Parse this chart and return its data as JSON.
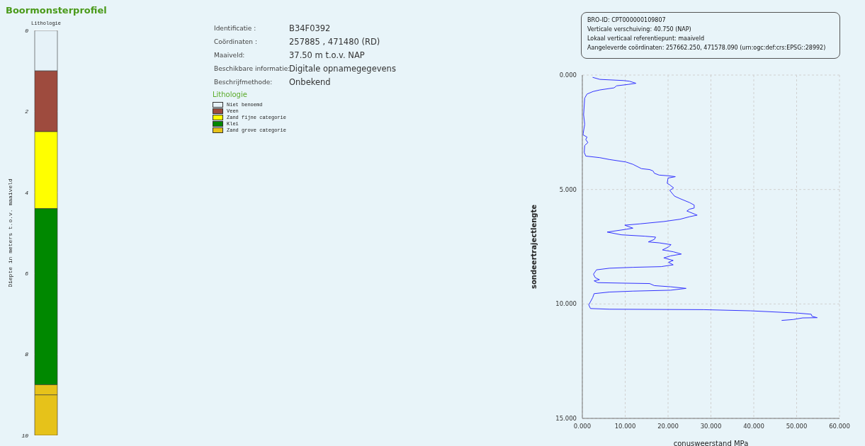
{
  "chart_data": [
    {
      "type": "bar",
      "title": "Boormonsterprofiel",
      "ylabel": "Diepte in meters t.o.v. maaiveld",
      "categories": [
        "Lithologie"
      ],
      "stacked": true,
      "series": [
        {
          "name": "Niet benoemd",
          "color": "#e6f2f8",
          "values": [
            1.0
          ]
        },
        {
          "name": "Veen",
          "color": "#9e4b3e",
          "values": [
            1.5
          ]
        },
        {
          "name": "Zand fijne categorie",
          "color": "#ffff00",
          "values": [
            1.9
          ]
        },
        {
          "name": "Klei",
          "color": "#008800",
          "values": [
            4.35
          ]
        },
        {
          "name": "Zand grove categorie",
          "color": "#e6c21a",
          "values": [
            0.25
          ]
        },
        {
          "color": "#e6c21a",
          "values": [
            1.0
          ]
        }
      ],
      "ylim": [
        10,
        0
      ],
      "yticks": [
        0,
        2,
        4,
        6,
        8,
        10
      ],
      "grid": "y",
      "legend": "right",
      "legend_title": "Lithologie"
    },
    {
      "type": "other",
      "annotations": [
        "Identificatie :",
        "B34F0392",
        "Coördinaten :",
        "257885 , 471480 (RD)",
        "Maaiveld:",
        "37.50 m t.o.v. NAP",
        "Beschikbare informatie:",
        "Digitale opnamegegevens",
        "Beschrijfmethode:",
        "Onbekend"
      ]
    },
    {
      "type": "line",
      "xlabel": "conusweerstand MPa",
      "ylabel": "sondeertrajectlengte",
      "annotations": [
        "BRO-ID: CPT000000109807",
        "Verticale verschuiving: 40.750 (NAP)",
        "Lokaal verticaal referentiepunt: maaiveld",
        "Aangeleverde coördinaten: 257662.250, 471578.090 (urn:ogc:def:crs:EPSG::28992)"
      ],
      "series": [
        {
          "color": "#3333ff",
          "x": [
            2.4,
            4.1,
            9.6,
            11.0,
            12.5,
            10.7,
            8.0,
            7.4,
            4.1,
            2.5,
            1.1,
            0.55,
            0.3,
            0.55,
            0.15,
            1.1,
            0.8,
            1.3,
            0.55,
            0.45,
            0.8,
            4.1,
            6.3,
            10.2,
            11.8,
            13.8,
            15.7,
            16.5,
            16.8,
            17.9,
            20.0,
            21.7,
            20.0,
            19.8,
            20.4,
            21.3,
            20.4,
            21.5,
            22.8,
            25.0,
            26.1,
            26.1,
            25.0,
            24.4,
            26.8,
            25.0,
            22.8,
            19.0,
            13.5,
            9.9,
            11.8,
            10.2,
            5.8,
            9.1,
            14.6,
            17.1,
            16.8,
            15.4,
            17.9,
            20.7,
            20.1,
            18.7,
            21.2,
            23.1,
            20.6,
            19.0,
            21.2,
            20.1,
            21.2,
            18.4,
            11.8,
            6.3,
            3.3,
            2.6,
            3.0,
            4.0,
            2.75,
            3.6,
            9.1,
            15.7,
            16.8,
            20.6,
            24.2,
            20.6,
            11.8,
            6.3,
            2.75,
            2.4,
            1.5,
            1.9,
            6.3,
            28.3,
            39.3,
            50.3,
            53.4,
            53.6,
            54.8,
            51.4,
            49.2,
            46.5
          ],
          "values": [
            0.1,
            0.19,
            0.24,
            0.27,
            0.36,
            0.41,
            0.47,
            0.56,
            0.65,
            0.72,
            0.83,
            1.01,
            1.73,
            2.15,
            2.61,
            2.71,
            2.82,
            2.95,
            3.08,
            3.38,
            3.54,
            3.61,
            3.69,
            3.8,
            3.9,
            4.09,
            4.13,
            4.19,
            4.29,
            4.37,
            4.4,
            4.44,
            4.5,
            4.73,
            4.8,
            4.93,
            5.04,
            5.29,
            5.4,
            5.57,
            5.68,
            5.81,
            5.86,
            5.94,
            6.12,
            6.19,
            6.3,
            6.4,
            6.5,
            6.56,
            6.69,
            6.74,
            6.86,
            6.98,
            7.04,
            7.08,
            7.18,
            7.29,
            7.33,
            7.41,
            7.51,
            7.64,
            7.72,
            7.82,
            7.9,
            7.99,
            8.1,
            8.18,
            8.29,
            8.37,
            8.4,
            8.44,
            8.51,
            8.7,
            8.85,
            8.94,
            8.99,
            9.07,
            9.09,
            9.11,
            9.2,
            9.25,
            9.32,
            9.4,
            9.44,
            9.48,
            9.55,
            9.73,
            10.04,
            10.2,
            10.23,
            10.25,
            10.3,
            10.4,
            10.45,
            10.54,
            10.6,
            10.61,
            10.68,
            10.72
          ]
        }
      ],
      "xlim": [
        0,
        60
      ],
      "xticks": [
        {
          "value": 0,
          "label": "0.000"
        },
        {
          "value": 10,
          "label": "10.000"
        },
        {
          "value": 20,
          "label": "20.000"
        },
        {
          "value": 30,
          "label": "30.000"
        },
        {
          "value": 40,
          "label": "40.000"
        },
        {
          "value": 50,
          "label": "50.000"
        },
        {
          "value": 60,
          "label": "60.000"
        }
      ],
      "ylim": [
        15,
        0
      ],
      "yticks": [
        {
          "value": 0,
          "label": "0.000"
        },
        {
          "value": 5,
          "label": "5.000"
        },
        {
          "value": 10,
          "label": "10.000"
        },
        {
          "value": 15,
          "label": "15.000"
        }
      ],
      "grid": true
    }
  ]
}
